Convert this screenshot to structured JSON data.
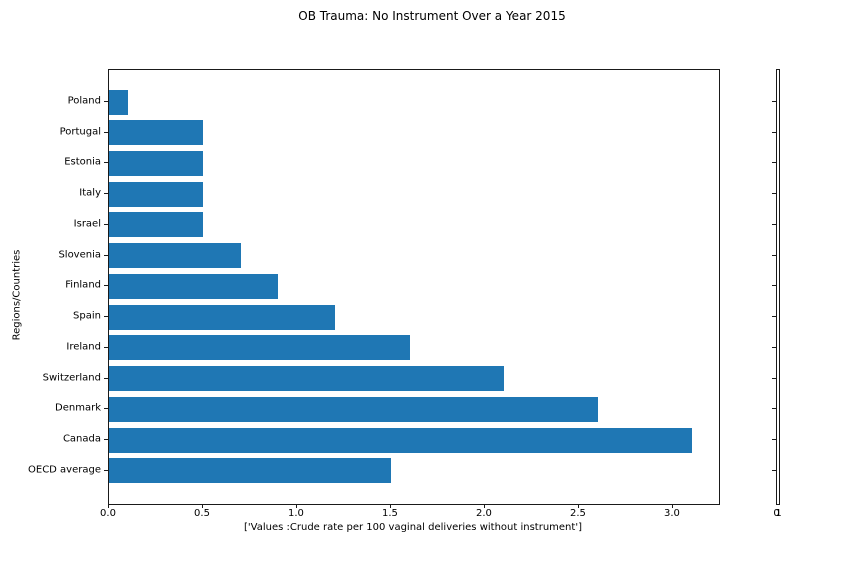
{
  "title": "OB Trauma: No Instrument Over a Year 2015",
  "chart_data": {
    "type": "bar",
    "orientation": "horizontal",
    "order": "top-to-bottom",
    "categories": [
      "Poland",
      "Portugal",
      "Estonia",
      "Italy",
      "Israel",
      "Slovenia",
      "Finland",
      "Spain",
      "Ireland",
      "Switzerland",
      "Denmark",
      "Canada",
      "OECD average"
    ],
    "values": [
      0.1,
      0.5,
      0.5,
      0.5,
      0.5,
      0.7,
      0.9,
      1.2,
      1.6,
      2.1,
      2.6,
      3.1,
      1.5
    ],
    "title": "OB Trauma: No Instrument Over a Year 2015",
    "xlabel": "['Values :Crude rate per 100 vaginal deliveries without instrument']",
    "ylabel": "Regions/Countries",
    "xtick_labels": [
      "0.0",
      "0.5",
      "1.0",
      "1.5",
      "2.0",
      "2.5",
      "3.0"
    ],
    "xtick_values": [
      0,
      0.5,
      1,
      1.5,
      2,
      2.5,
      3
    ],
    "xlim": [
      0,
      3.245
    ],
    "bar_color": "#1f77b4",
    "grid": false,
    "legend": null,
    "secondary_axis": {
      "xtick_labels": [
        "0",
        "1"
      ]
    }
  }
}
